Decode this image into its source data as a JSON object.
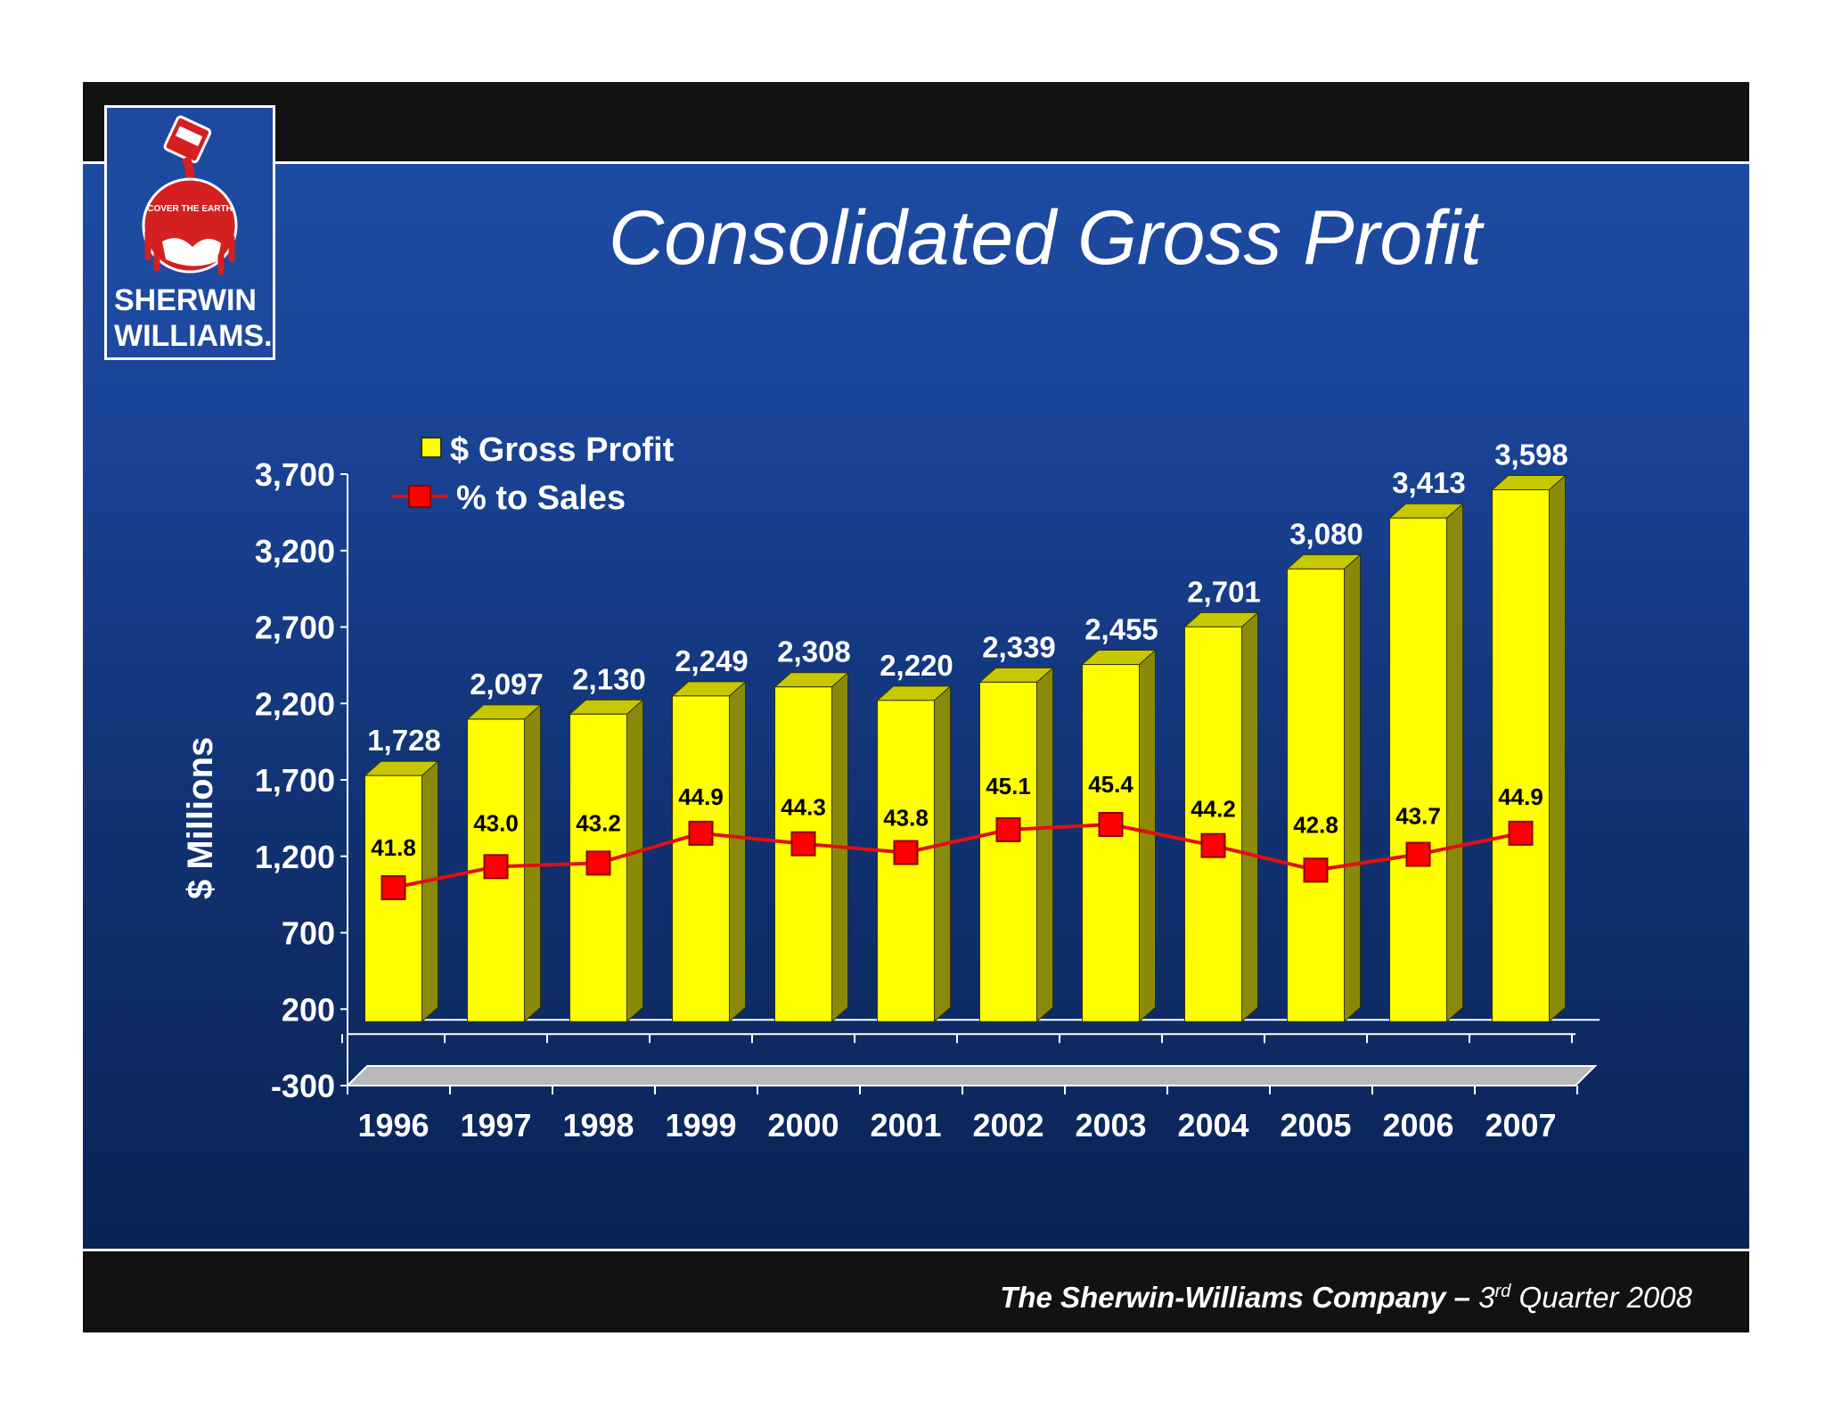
{
  "title": "Consolidated Gross Profit",
  "logo": {
    "line1": "SHERWIN",
    "line2": "WILLIAMS.",
    "slogan": "COVER THE EARTH"
  },
  "footer": {
    "company": "The Sherwin-Williams Company –",
    "quarter_num": "3",
    "quarter_sup": "rd",
    "quarter_rest": "Quarter 2008"
  },
  "colors": {
    "bar": "#ffff00",
    "bar_side": "#8a8a0a",
    "bar_top": "#c8c800",
    "line": "#e01010",
    "marker": "#ff0000",
    "background": "#1a4396"
  },
  "chart_data": {
    "type": "bar",
    "title": "Consolidated Gross Profit",
    "xlabel": "",
    "ylabel": "$ Millions",
    "ylim": [
      -300,
      3700
    ],
    "yticks": [
      "3,700",
      "3,200",
      "2,700",
      "2,200",
      "1,700",
      "1,200",
      "700",
      "200",
      "-300"
    ],
    "ytick_values": [
      3700,
      3200,
      2700,
      2200,
      1700,
      1200,
      700,
      200,
      -300
    ],
    "categories": [
      "1996",
      "1997",
      "1998",
      "1999",
      "2000",
      "2001",
      "2002",
      "2003",
      "2004",
      "2005",
      "2006",
      "2007"
    ],
    "legend": [
      "$ Gross Profit",
      "% to Sales"
    ],
    "legend_position": "top-left",
    "series": [
      {
        "name": "$ Gross Profit",
        "type": "bar",
        "values": [
          1728,
          2097,
          2130,
          2249,
          2308,
          2220,
          2339,
          2455,
          2701,
          3080,
          3413,
          3598
        ],
        "labels": [
          "1,728",
          "2,097",
          "2,130",
          "2,249",
          "2,308",
          "2,220",
          "2,339",
          "2,455",
          "2,701",
          "3,080",
          "3,413",
          "3,598"
        ]
      },
      {
        "name": "% to Sales",
        "type": "line",
        "values": [
          41.8,
          43.0,
          43.2,
          44.9,
          44.3,
          43.8,
          45.1,
          45.4,
          44.2,
          42.8,
          43.7,
          44.9
        ],
        "labels": [
          "41.8",
          "43.0",
          "43.2",
          "44.9",
          "44.3",
          "43.8",
          "45.1",
          "45.4",
          "44.2",
          "42.8",
          "43.7",
          "44.9"
        ]
      }
    ]
  }
}
